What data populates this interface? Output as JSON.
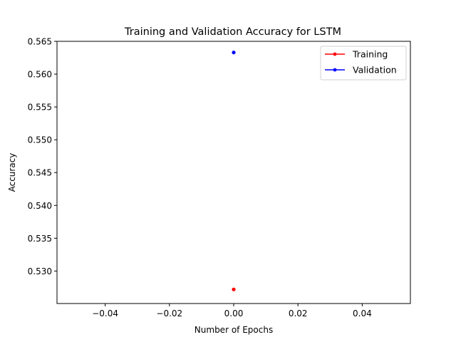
{
  "chart_data": {
    "type": "scatter",
    "title": "Training and Validation Accuracy for LSTM",
    "xlabel": "Number of Epochs",
    "ylabel": "Accuracy",
    "xlim": [
      -0.055,
      0.055
    ],
    "ylim": [
      0.52505,
      0.565
    ],
    "xticks": [
      -0.04,
      -0.02,
      0.0,
      0.02,
      0.04
    ],
    "xtick_labels": [
      "−0.04",
      "−0.02",
      "0.00",
      "0.02",
      "0.04"
    ],
    "yticks": [
      0.53,
      0.535,
      0.54,
      0.545,
      0.55,
      0.555,
      0.56,
      0.565
    ],
    "ytick_labels": [
      "0.530",
      "0.535",
      "0.540",
      "0.545",
      "0.550",
      "0.555",
      "0.560",
      "0.565"
    ],
    "grid": false,
    "legend_position": "top-right",
    "series": [
      {
        "name": "Training",
        "color": "#ff0000",
        "x": [
          0
        ],
        "y": [
          0.5272
        ]
      },
      {
        "name": "Validation",
        "color": "#0000ff",
        "x": [
          0
        ],
        "y": [
          0.5633
        ]
      }
    ]
  }
}
